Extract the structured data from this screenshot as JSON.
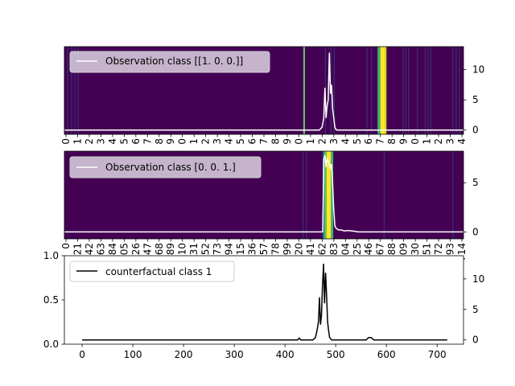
{
  "chart_data": [
    {
      "type": "heatmap",
      "legend": {
        "label": "Observation class [[1. 0. 0.]]",
        "placement": "upper-left",
        "line_color": "#ffffff"
      },
      "top_tick_labels": [
        "0",
        "1",
        "2",
        "3",
        "4",
        "5",
        "6",
        "7",
        "8",
        "9",
        "0",
        "1",
        "2",
        "3",
        "4",
        "5",
        "6",
        "7",
        "8",
        "9",
        "0",
        "1",
        "2",
        "3",
        "4",
        "5",
        "6",
        "7",
        "8",
        "9",
        "0",
        "1",
        "2",
        "3",
        "4"
      ],
      "right_ticks": [
        0,
        5,
        10
      ],
      "ylim": [
        -0.7,
        13.8
      ],
      "background_color": "#440154",
      "highlight_bands": [
        {
          "x": 431,
          "w": 3,
          "color": "#5ec962"
        },
        {
          "x": 565,
          "w": 5,
          "color": "#35b779"
        },
        {
          "x": 570,
          "w": 8,
          "color": "#fde725"
        },
        {
          "x": 578,
          "w": 3,
          "color": "#dce319"
        }
      ],
      "faint_bands": [
        5,
        12,
        18,
        24,
        470,
        480,
        486,
        545,
        553,
        578,
        610,
        615,
        620,
        636,
        650,
        655,
        660,
        700,
        706,
        712
      ],
      "series": [
        {
          "x": [
            0,
            460,
            465,
            468,
            470,
            472,
            474,
            476,
            478,
            480,
            482,
            484,
            486,
            488,
            490,
            492,
            494,
            496,
            500,
            720
          ],
          "y": [
            0,
            0,
            0.5,
            2,
            7,
            2,
            4,
            5,
            12.8,
            6,
            7.5,
            3.5,
            2,
            0.4,
            0.1,
            0,
            0,
            0,
            0,
            0
          ]
        }
      ]
    },
    {
      "type": "heatmap",
      "legend": {
        "label": "Observation class [0. 0. 1.]",
        "placement": "upper-left",
        "line_color": "#ffffff"
      },
      "top_tick_labels": [
        "0",
        "21",
        "42",
        "63",
        "84",
        "105",
        "126",
        "147",
        "168",
        "189",
        "210",
        "231",
        "252",
        "273",
        "294",
        "315",
        "336",
        "357",
        "378",
        "399",
        "420",
        "441",
        "462",
        "483",
        "504",
        "525",
        "546",
        "567",
        "588",
        "609",
        "630",
        "651",
        "672",
        "693",
        "714"
      ],
      "right_ticks": [
        0,
        5
      ],
      "ylim": [
        -0.7,
        8.2
      ],
      "background_color": "#440154",
      "highlight_bands": [
        {
          "x": 466,
          "w": 3,
          "color": "#2a788e"
        },
        {
          "x": 469,
          "w": 4,
          "color": "#5ec962"
        },
        {
          "x": 473,
          "w": 8,
          "color": "#fde725"
        },
        {
          "x": 481,
          "w": 4,
          "color": "#35b779"
        }
      ],
      "faint_bands": [
        430,
        436,
        576,
        700
      ],
      "series": [
        {
          "x": [
            0,
            455,
            466,
            468,
            470,
            472,
            474,
            476,
            478,
            480,
            482,
            484,
            486,
            488,
            490,
            492,
            495,
            500,
            505,
            510,
            520,
            530,
            720
          ],
          "y": [
            0,
            0,
            0,
            7.4,
            7.8,
            6.6,
            7.5,
            7.2,
            6.8,
            6.5,
            6.9,
            4.8,
            2.2,
            0.6,
            0.4,
            0.3,
            0.2,
            0.2,
            0.1,
            0.15,
            0.1,
            0,
            0
          ]
        }
      ]
    },
    {
      "type": "line",
      "legend": {
        "label": "counterfactual class 1",
        "placement": "upper-left"
      },
      "x_ticks": [
        0,
        100,
        200,
        300,
        400,
        500,
        600,
        700
      ],
      "left_ticks": [
        "0.0",
        "0.5",
        "1.0"
      ],
      "right_ticks": [
        0,
        5,
        10
      ],
      "xlim": [
        -35,
        752
      ],
      "ylim_right": [
        -0.7,
        13.8
      ],
      "series": [
        {
          "name": "counterfactual class 1",
          "color": "#000000",
          "x": [
            0,
            425,
            428,
            431,
            440,
            455,
            460,
            463,
            466,
            468,
            470,
            472,
            474,
            476,
            478,
            480,
            482,
            484,
            486,
            488,
            490,
            492,
            495,
            500,
            520,
            560,
            565,
            570,
            575,
            580,
            600,
            720
          ],
          "y": [
            0,
            0,
            0.3,
            0,
            0,
            0,
            0.4,
            1.5,
            3,
            7,
            2.5,
            4,
            9,
            12.5,
            6,
            11,
            7.5,
            3,
            1.5,
            0.4,
            0.2,
            0,
            0,
            0,
            0,
            0,
            0.4,
            0.4,
            0,
            0,
            0,
            0
          ]
        }
      ]
    }
  ]
}
